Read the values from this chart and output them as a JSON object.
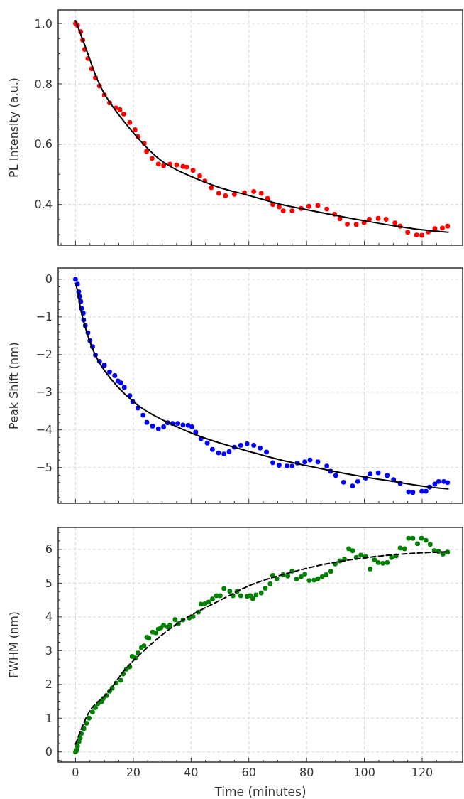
{
  "chart_data": [
    {
      "type": "scatter",
      "ylabel": "PL Intensity (a.u.)",
      "xlim": [
        -6,
        134
      ],
      "ylim": [
        0.265,
        1.045
      ],
      "grid": true,
      "tick_labels": "y",
      "xticks": [
        {
          "value": -5,
          "label": null
        },
        0,
        {
          "value": 5,
          "label": null
        },
        {
          "value": 10,
          "label": null
        },
        {
          "value": 15,
          "label": null
        },
        20,
        {
          "value": 25,
          "label": null
        },
        {
          "value": 30,
          "label": null
        },
        {
          "value": 35,
          "label": null
        },
        40,
        {
          "value": 45,
          "label": null
        },
        {
          "value": 50,
          "label": null
        },
        {
          "value": 55,
          "label": null
        },
        60,
        {
          "value": 65,
          "label": null
        },
        {
          "value": 70,
          "label": null
        },
        {
          "value": 75,
          "label": null
        },
        80,
        {
          "value": 85,
          "label": null
        },
        {
          "value": 90,
          "label": null
        },
        {
          "value": 95,
          "label": null
        },
        100,
        {
          "value": 105,
          "label": null
        },
        {
          "value": 110,
          "label": null
        },
        {
          "value": 115,
          "label": null
        },
        120,
        {
          "value": 125,
          "label": null
        },
        {
          "value": 130,
          "label": null
        }
      ],
      "yticks": [
        {
          "value": 0.3,
          "label": null
        },
        {
          "value": 0.35,
          "label": null
        },
        0.4,
        {
          "value": 0.45,
          "label": null
        },
        {
          "value": 0.5,
          "label": null
        },
        {
          "value": 0.55,
          "label": null
        },
        0.6,
        {
          "value": 0.65,
          "label": null
        },
        {
          "value": 0.7,
          "label": null
        },
        {
          "value": 0.75,
          "label": null
        },
        0.8,
        {
          "value": 0.85,
          "label": null
        },
        {
          "value": 0.9,
          "label": null
        },
        {
          "value": 0.95,
          "label": null
        },
        {
          "value": 1,
          "label": "1.0"
        }
      ],
      "series": [
        {
          "marker": "circle",
          "color": "#ff0000",
          "x": [
            0,
            0.7,
            1.8,
            2.5,
            3.2,
            4.3,
            5.6,
            6.9,
            8.3,
            10,
            11.8,
            14,
            15.4,
            16.7,
            18.8,
            20.6,
            21.6,
            23.8,
            24.6,
            26.5,
            28.7,
            30.5,
            32.7,
            35,
            37.2,
            38.5,
            40.7,
            43,
            44.8,
            47,
            49.6,
            51.9,
            55,
            58.5,
            61.7,
            64.3,
            66.5,
            68.3,
            70.5,
            71.9,
            75,
            78.1,
            80.8,
            83.9,
            87,
            89.7,
            91.5,
            94.1,
            97.2,
            99.9,
            101.7,
            104.8,
            107.5,
            110.6,
            112.4,
            115,
            118.1,
            119.9,
            122.1,
            124.4,
            127,
            128.8
          ],
          "values": [
            1.0,
            0.994,
            0.973,
            0.945,
            0.914,
            0.884,
            0.85,
            0.82,
            0.793,
            0.763,
            0.737,
            0.72,
            0.714,
            0.7,
            0.672,
            0.648,
            0.625,
            0.602,
            0.576,
            0.553,
            0.534,
            0.529,
            0.534,
            0.531,
            0.526,
            0.524,
            0.513,
            0.495,
            0.478,
            0.456,
            0.437,
            0.429,
            0.434,
            0.439,
            0.443,
            0.437,
            0.42,
            0.4,
            0.392,
            0.379,
            0.379,
            0.387,
            0.394,
            0.397,
            0.385,
            0.368,
            0.353,
            0.335,
            0.334,
            0.34,
            0.351,
            0.354,
            0.351,
            0.339,
            0.328,
            0.308,
            0.299,
            0.298,
            0.309,
            0.32,
            0.322,
            0.328
          ]
        },
        {
          "type": "line",
          "marker": "none",
          "color": "#000000",
          "line_style": "solid",
          "x": [
            0,
            5,
            10,
            20,
            30,
            40,
            50,
            60,
            70,
            80,
            90,
            100,
            110,
            120,
            129
          ],
          "values": [
            1.01,
            0.88,
            0.767,
            0.638,
            0.543,
            0.493,
            0.456,
            0.43,
            0.403,
            0.383,
            0.364,
            0.346,
            0.33,
            0.316,
            0.308
          ]
        }
      ]
    },
    {
      "type": "scatter",
      "ylabel": "Peak Shift (nm)",
      "xlim": [
        -6,
        134
      ],
      "ylim": [
        -5.95,
        0.3
      ],
      "grid": true,
      "tick_labels": "y",
      "xticks": [
        {
          "value": -5,
          "label": null
        },
        0,
        {
          "value": 5,
          "label": null
        },
        {
          "value": 10,
          "label": null
        },
        {
          "value": 15,
          "label": null
        },
        20,
        {
          "value": 25,
          "label": null
        },
        {
          "value": 30,
          "label": null
        },
        {
          "value": 35,
          "label": null
        },
        40,
        {
          "value": 45,
          "label": null
        },
        {
          "value": 50,
          "label": null
        },
        {
          "value": 55,
          "label": null
        },
        60,
        {
          "value": 65,
          "label": null
        },
        {
          "value": 70,
          "label": null
        },
        {
          "value": 75,
          "label": null
        },
        80,
        {
          "value": 85,
          "label": null
        },
        {
          "value": 90,
          "label": null
        },
        {
          "value": 95,
          "label": null
        },
        100,
        {
          "value": 105,
          "label": null
        },
        {
          "value": 110,
          "label": null
        },
        {
          "value": 115,
          "label": null
        },
        120,
        {
          "value": 125,
          "label": null
        },
        {
          "value": 130,
          "label": null
        }
      ],
      "yticks": [
        {
          "value": -5.8,
          "label": null
        },
        {
          "value": -5.6,
          "label": null
        },
        {
          "value": -5.4,
          "label": null
        },
        {
          "value": -5.2,
          "label": null
        },
        {
          "value": -5,
          "label": "−5"
        },
        {
          "value": -4.8,
          "label": null
        },
        {
          "value": -4.6,
          "label": null
        },
        {
          "value": -4.4,
          "label": null
        },
        {
          "value": -4.2,
          "label": null
        },
        {
          "value": -4,
          "label": "−4"
        },
        {
          "value": -3.8,
          "label": null
        },
        {
          "value": -3.6,
          "label": null
        },
        {
          "value": -3.4,
          "label": null
        },
        {
          "value": -3.2,
          "label": null
        },
        {
          "value": -3,
          "label": "−3"
        },
        {
          "value": -2.8,
          "label": null
        },
        {
          "value": -2.6,
          "label": null
        },
        {
          "value": -2.4,
          "label": null
        },
        {
          "value": -2.2,
          "label": null
        },
        {
          "value": -2,
          "label": "−2"
        },
        {
          "value": -1.8,
          "label": null
        },
        {
          "value": -1.6,
          "label": null
        },
        {
          "value": -1.4,
          "label": null
        },
        {
          "value": -1.2,
          "label": null
        },
        {
          "value": -1,
          "label": "−1"
        },
        {
          "value": -0.8,
          "label": null
        },
        {
          "value": -0.6,
          "label": null
        },
        {
          "value": -0.4,
          "label": null
        },
        {
          "value": -0.2,
          "label": null
        },
        0,
        {
          "value": 0.2,
          "label": null
        }
      ],
      "series": [
        {
          "marker": "circle",
          "color": "#0000ff",
          "x": [
            0,
            0.7,
            1.1,
            1.4,
            1.8,
            2.1,
            2.7,
            2.8,
            3.4,
            4.3,
            5,
            5.9,
            6.9,
            8.3,
            10,
            11.8,
            13.6,
            14.7,
            15.7,
            16.9,
            18.8,
            19.8,
            21.6,
            23.4,
            24.7,
            26.7,
            28.7,
            30.5,
            31.9,
            33.6,
            35.4,
            37.2,
            39,
            40.3,
            41.6,
            43.4,
            45.6,
            47.4,
            49.5,
            51.4,
            53.2,
            55,
            57.2,
            59.4,
            61.7,
            63.9,
            66.1,
            68.3,
            70.5,
            73.2,
            75,
            76.8,
            79.4,
            81.2,
            83.9,
            87,
            88.3,
            90.1,
            92.8,
            95.9,
            97.7,
            100.4,
            102,
            104.8,
            107.9,
            110.1,
            112.4,
            115.3,
            116.8,
            119.9,
            121.3,
            122.6,
            124.4,
            125.7,
            127.5,
            128.8
          ],
          "values": [
            0,
            -0.13,
            -0.33,
            -0.46,
            -0.59,
            -0.77,
            -0.9,
            -1.08,
            -1.23,
            -1.42,
            -1.63,
            -1.79,
            -2.01,
            -2.18,
            -2.28,
            -2.46,
            -2.56,
            -2.7,
            -2.75,
            -2.87,
            -3.09,
            -3.25,
            -3.42,
            -3.61,
            -3.8,
            -3.9,
            -3.97,
            -3.92,
            -3.81,
            -3.83,
            -3.83,
            -3.87,
            -3.88,
            -3.92,
            -4.06,
            -4.23,
            -4.35,
            -4.52,
            -4.61,
            -4.64,
            -4.58,
            -4.46,
            -4.41,
            -4.37,
            -4.41,
            -4.48,
            -4.59,
            -4.87,
            -4.94,
            -4.96,
            -4.96,
            -4.88,
            -4.85,
            -4.8,
            -4.85,
            -4.96,
            -5.1,
            -5.21,
            -5.39,
            -5.49,
            -5.37,
            -5.28,
            -5.17,
            -5.14,
            -5.21,
            -5.32,
            -5.42,
            -5.65,
            -5.66,
            -5.63,
            -5.63,
            -5.52,
            -5.44,
            -5.37,
            -5.37,
            -5.4
          ]
        },
        {
          "type": "line",
          "marker": "none",
          "color": "#000000",
          "line_style": "solid",
          "x": [
            0,
            1,
            2,
            5,
            10,
            20,
            30,
            40,
            50,
            60,
            70,
            80,
            90,
            100,
            110,
            120,
            129
          ],
          "values": [
            -0.11,
            -0.42,
            -0.87,
            -1.66,
            -2.42,
            -3.25,
            -3.73,
            -4.08,
            -4.35,
            -4.57,
            -4.78,
            -4.95,
            -5.11,
            -5.25,
            -5.37,
            -5.49,
            -5.57
          ]
        }
      ]
    },
    {
      "type": "scatter",
      "ylabel": "FWHM (nm)",
      "xlabel": "Time (minutes)",
      "xlim": [
        -6,
        134
      ],
      "ylim": [
        -0.3,
        6.65
      ],
      "grid": true,
      "xticks": [
        {
          "value": -5,
          "label": null
        },
        0,
        {
          "value": 5,
          "label": null
        },
        {
          "value": 10,
          "label": null
        },
        {
          "value": 15,
          "label": null
        },
        20,
        {
          "value": 25,
          "label": null
        },
        {
          "value": 30,
          "label": null
        },
        {
          "value": 35,
          "label": null
        },
        40,
        {
          "value": 45,
          "label": null
        },
        {
          "value": 50,
          "label": null
        },
        {
          "value": 55,
          "label": null
        },
        60,
        {
          "value": 65,
          "label": null
        },
        {
          "value": 70,
          "label": null
        },
        {
          "value": 75,
          "label": null
        },
        80,
        {
          "value": 85,
          "label": null
        },
        {
          "value": 90,
          "label": null
        },
        {
          "value": 95,
          "label": null
        },
        100,
        {
          "value": 105,
          "label": null
        },
        {
          "value": 110,
          "label": null
        },
        {
          "value": 115,
          "label": null
        },
        120,
        {
          "value": 125,
          "label": null
        },
        {
          "value": 130,
          "label": null
        }
      ],
      "yticks": [
        {
          "value": -0.25,
          "label": null
        },
        0,
        {
          "value": 0.25,
          "label": null
        },
        {
          "value": 0.5,
          "label": null
        },
        {
          "value": 0.75,
          "label": null
        },
        1,
        {
          "value": 1.25,
          "label": null
        },
        {
          "value": 1.5,
          "label": null
        },
        {
          "value": 1.75,
          "label": null
        },
        2,
        {
          "value": 2.25,
          "label": null
        },
        {
          "value": 2.5,
          "label": null
        },
        {
          "value": 2.75,
          "label": null
        },
        3,
        {
          "value": 3.25,
          "label": null
        },
        {
          "value": 3.5,
          "label": null
        },
        {
          "value": 3.75,
          "label": null
        },
        4,
        {
          "value": 4.25,
          "label": null
        },
        {
          "value": 4.5,
          "label": null
        },
        {
          "value": 4.75,
          "label": null
        },
        5,
        {
          "value": 5.25,
          "label": null
        },
        {
          "value": 5.5,
          "label": null
        },
        {
          "value": 5.75,
          "label": null
        },
        6,
        {
          "value": 6.25,
          "label": null
        },
        {
          "value": 6.5,
          "label": null
        }
      ],
      "series": [
        {
          "marker": "circle",
          "color": "#008000",
          "x": [
            0,
            0.4,
            0.7,
            1.2,
            1.6,
            2,
            2.9,
            3.8,
            4.7,
            5.9,
            6.9,
            7.8,
            8.9,
            9.6,
            10.7,
            11.8,
            12.7,
            14,
            15.7,
            16.5,
            17.6,
            18.8,
            19.6,
            20.7,
            21.6,
            22.8,
            23.7,
            24.7,
            25.4,
            26.7,
            27.8,
            28.7,
            29.6,
            30.5,
            31.9,
            32.7,
            34.5,
            35.6,
            37.2,
            39.4,
            40.7,
            42.5,
            43.4,
            44.8,
            46.1,
            47.4,
            48.8,
            50.1,
            51.4,
            53.4,
            54.5,
            55.9,
            57.2,
            59.4,
            60.5,
            61.4,
            62.5,
            64.3,
            65.7,
            67.4,
            68.3,
            69.7,
            71.9,
            73.5,
            75,
            76.5,
            78.1,
            79.4,
            80.9,
            82.6,
            83.9,
            85.4,
            86.8,
            88.4,
            89.9,
            91.5,
            93.1,
            94.6,
            95.9,
            97.2,
            98.8,
            100.4,
            102,
            103.5,
            104.8,
            106.4,
            107.9,
            109.4,
            111,
            112.4,
            113.9,
            115.3,
            116.8,
            118.4,
            119.8,
            121.3,
            122.8,
            124.2,
            125.7,
            127.2,
            128.8
          ],
          "values": [
            0,
            0.05,
            0.17,
            0.31,
            0.41,
            0.54,
            0.69,
            0.85,
            1.0,
            1.18,
            1.31,
            1.43,
            1.48,
            1.58,
            1.67,
            1.8,
            1.89,
            2.04,
            2.12,
            2.31,
            2.45,
            2.52,
            2.83,
            2.78,
            2.93,
            3.09,
            3.14,
            3.4,
            3.37,
            3.55,
            3.53,
            3.64,
            3.68,
            3.76,
            3.7,
            3.76,
            3.92,
            3.8,
            3.91,
            3.97,
            4.01,
            4.14,
            4.38,
            4.39,
            4.44,
            4.53,
            4.63,
            4.63,
            4.84,
            4.76,
            4.63,
            4.75,
            4.63,
            4.61,
            4.63,
            4.54,
            4.65,
            4.71,
            4.85,
            4.98,
            5.23,
            5.13,
            5.25,
            5.21,
            5.36,
            5.12,
            5.19,
            5.27,
            5.08,
            5.09,
            5.13,
            5.19,
            5.25,
            5.35,
            5.57,
            5.66,
            5.71,
            6.02,
            5.96,
            5.76,
            5.83,
            5.79,
            5.42,
            5.69,
            5.61,
            5.59,
            5.61,
            5.76,
            5.81,
            6.04,
            6.02,
            6.33,
            6.33,
            6.17,
            6.33,
            6.27,
            6.15,
            5.96,
            5.94,
            5.86,
            5.92
          ]
        },
        {
          "type": "line",
          "marker": "none",
          "color": "#000000",
          "line_style": "dashed",
          "x": [
            0,
            5,
            10,
            15,
            20,
            30,
            40,
            50,
            60,
            70,
            80,
            90,
            100,
            110,
            120,
            129
          ],
          "values": [
            0.23,
            1.22,
            1.65,
            2.2,
            2.7,
            3.47,
            4.05,
            4.49,
            4.92,
            5.21,
            5.44,
            5.62,
            5.75,
            5.84,
            5.9,
            5.93
          ]
        }
      ]
    }
  ]
}
